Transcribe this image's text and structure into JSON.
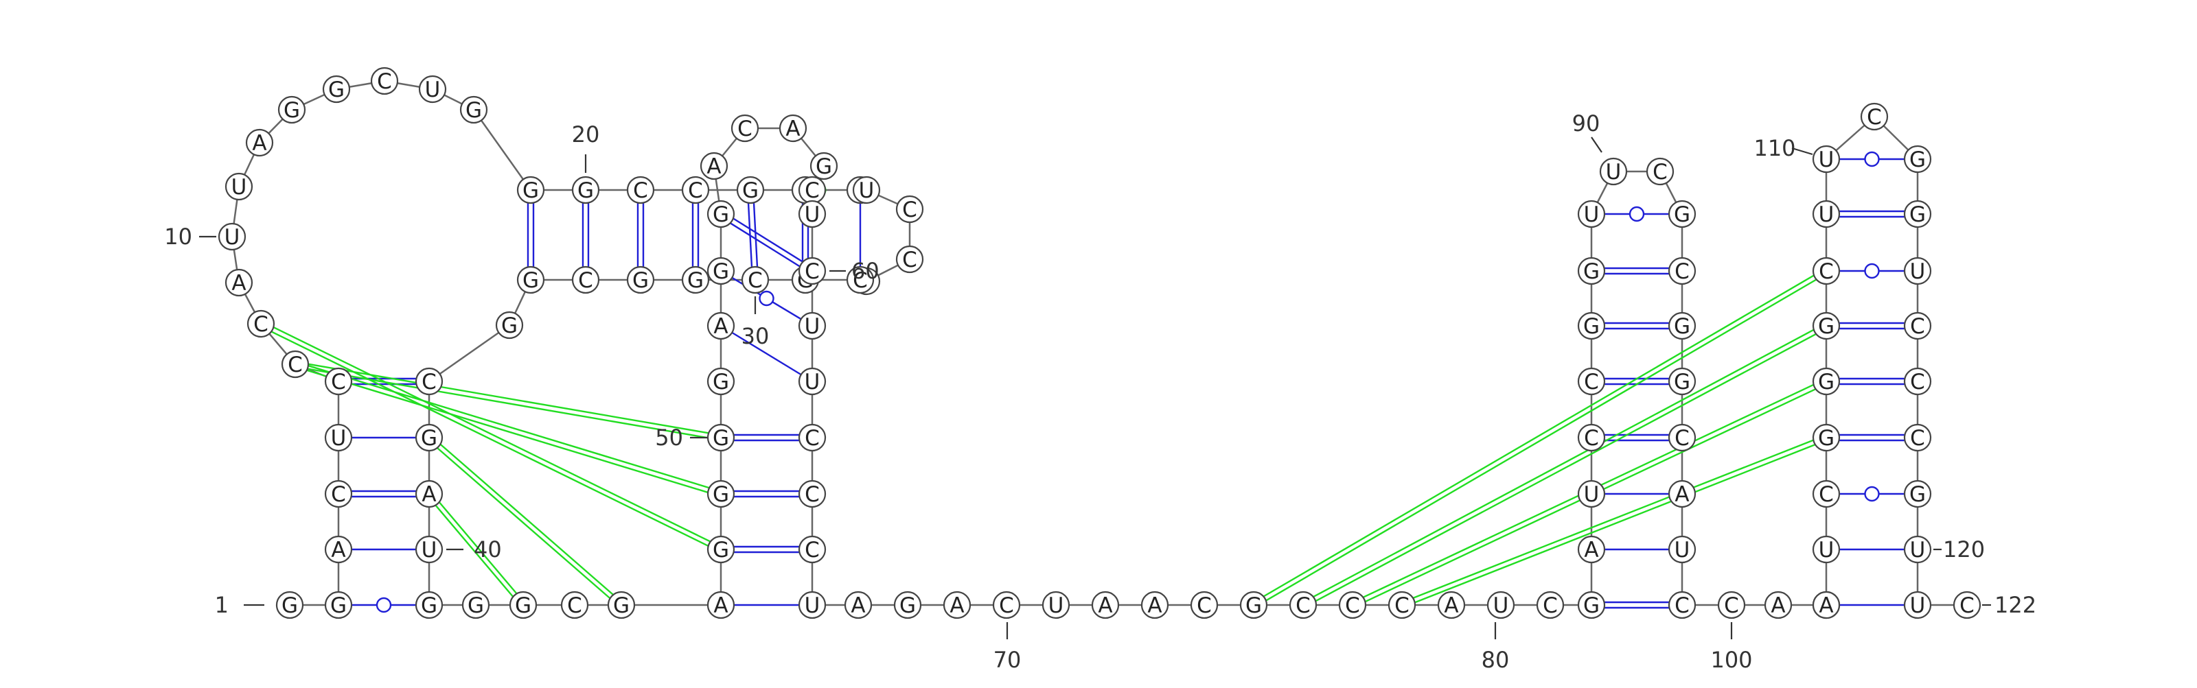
{
  "diagram": {
    "type": "rna-secondary-structure",
    "sequence_length": 122,
    "colors": {
      "canonical_pair": "#1f1fd6",
      "wobble_pair": "#1f1fd6",
      "pseudoknot": "#22dd22",
      "noncanonical": "#00dd00",
      "backbone": "#666666"
    },
    "nucleotides": [
      {
        "n": 1,
        "b": "G"
      },
      {
        "n": 2,
        "b": "G"
      },
      {
        "n": 3,
        "b": "A"
      },
      {
        "n": 4,
        "b": "C"
      },
      {
        "n": 5,
        "b": "U"
      },
      {
        "n": 6,
        "b": "C"
      },
      {
        "n": 7,
        "b": "C"
      },
      {
        "n": 8,
        "b": "C"
      },
      {
        "n": 9,
        "b": "A"
      },
      {
        "n": 10,
        "b": "U"
      },
      {
        "n": 11,
        "b": "U"
      },
      {
        "n": 12,
        "b": "A"
      },
      {
        "n": 13,
        "b": "G"
      },
      {
        "n": 14,
        "b": "G"
      },
      {
        "n": 15,
        "b": "C"
      },
      {
        "n": 16,
        "b": "U"
      },
      {
        "n": 17,
        "b": "G"
      },
      {
        "n": 18,
        "b": "G"
      },
      {
        "n": 19,
        "b": "G"
      },
      {
        "n": 20,
        "b": "C"
      },
      {
        "n": 21,
        "b": "C"
      },
      {
        "n": 22,
        "b": "G"
      },
      {
        "n": 23,
        "b": "C"
      },
      {
        "n": 24,
        "b": "C"
      },
      {
        "n": 25,
        "b": "U"
      },
      {
        "n": 26,
        "b": "C"
      },
      {
        "n": 27,
        "b": "C"
      },
      {
        "n": 28,
        "b": "U"
      },
      {
        "n": 29,
        "b": "C"
      },
      {
        "n": 30,
        "b": "G"
      },
      {
        "n": 31,
        "b": "C"
      },
      {
        "n": 32,
        "b": "G"
      },
      {
        "n": 33,
        "b": "G"
      },
      {
        "n": 34,
        "b": "C"
      },
      {
        "n": 35,
        "b": "G"
      },
      {
        "n": 36,
        "b": "G"
      },
      {
        "n": 37,
        "b": "C"
      },
      {
        "n": 38,
        "b": "G"
      },
      {
        "n": 39,
        "b": "A"
      },
      {
        "n": 40,
        "b": "U"
      },
      {
        "n": 41,
        "b": "G"
      },
      {
        "n": 42,
        "b": "G"
      },
      {
        "n": 43,
        "b": "G"
      },
      {
        "n": 44,
        "b": "C"
      },
      {
        "n": 45,
        "b": "G"
      },
      {
        "n": 46,
        "b": "A"
      },
      {
        "n": 47,
        "b": "G"
      },
      {
        "n": 48,
        "b": "G"
      },
      {
        "n": 49,
        "b": "G"
      },
      {
        "n": 50,
        "b": "G"
      },
      {
        "n": 51,
        "b": "A"
      },
      {
        "n": 52,
        "b": "G"
      },
      {
        "n": 53,
        "b": "G"
      },
      {
        "n": 54,
        "b": "A"
      },
      {
        "n": 55,
        "b": "C"
      },
      {
        "n": 56,
        "b": "A"
      },
      {
        "n": 57,
        "b": "G"
      },
      {
        "n": 58,
        "b": "C"
      },
      {
        "n": 59,
        "b": "U"
      },
      {
        "n": 60,
        "b": "C"
      },
      {
        "n": 61,
        "b": "U"
      },
      {
        "n": 62,
        "b": "U"
      },
      {
        "n": 63,
        "b": "C"
      },
      {
        "n": 64,
        "b": "C"
      },
      {
        "n": 65,
        "b": "C"
      },
      {
        "n": 66,
        "b": "U"
      },
      {
        "n": 67,
        "b": "A"
      },
      {
        "n": 68,
        "b": "G"
      },
      {
        "n": 69,
        "b": "A"
      },
      {
        "n": 70,
        "b": "C"
      },
      {
        "n": 71,
        "b": "U"
      },
      {
        "n": 72,
        "b": "A"
      },
      {
        "n": 73,
        "b": "A"
      },
      {
        "n": 74,
        "b": "C"
      },
      {
        "n": 75,
        "b": "G"
      },
      {
        "n": 76,
        "b": "C"
      },
      {
        "n": 77,
        "b": "C"
      },
      {
        "n": 78,
        "b": "C"
      },
      {
        "n": 79,
        "b": "A"
      },
      {
        "n": 80,
        "b": "U"
      },
      {
        "n": 81,
        "b": "C"
      },
      {
        "n": 82,
        "b": "G"
      },
      {
        "n": 83,
        "b": "A"
      },
      {
        "n": 84,
        "b": "U"
      },
      {
        "n": 85,
        "b": "C"
      },
      {
        "n": 86,
        "b": "C"
      },
      {
        "n": 87,
        "b": "G"
      },
      {
        "n": 88,
        "b": "G"
      },
      {
        "n": 89,
        "b": "U"
      },
      {
        "n": 90,
        "b": "U"
      },
      {
        "n": 91,
        "b": "C"
      },
      {
        "n": 92,
        "b": "G"
      },
      {
        "n": 93,
        "b": "C"
      },
      {
        "n": 94,
        "b": "G"
      },
      {
        "n": 95,
        "b": "G"
      },
      {
        "n": 96,
        "b": "C"
      },
      {
        "n": 97,
        "b": "A"
      },
      {
        "n": 98,
        "b": "U"
      },
      {
        "n": 99,
        "b": "C"
      },
      {
        "n": 100,
        "b": "C"
      },
      {
        "n": 101,
        "b": "A"
      },
      {
        "n": 102,
        "b": "A"
      },
      {
        "n": 103,
        "b": "A"
      },
      {
        "n": 104,
        "b": "U"
      },
      {
        "n": 105,
        "b": "C"
      },
      {
        "n": 106,
        "b": "G"
      },
      {
        "n": 107,
        "b": "G"
      },
      {
        "n": 108,
        "b": "G"
      },
      {
        "n": 109,
        "b": "C"
      },
      {
        "n": 110,
        "b": "U"
      },
      {
        "n": 111,
        "b": "U"
      },
      {
        "n": 112,
        "b": "C"
      },
      {
        "n": 113,
        "b": "G"
      },
      {
        "n": 114,
        "b": "G"
      },
      {
        "n": 115,
        "b": "U"
      },
      {
        "n": 116,
        "b": "C"
      },
      {
        "n": 117,
        "b": "C"
      },
      {
        "n": 118,
        "b": "C"
      },
      {
        "n": 119,
        "b": "G"
      },
      {
        "n": 120,
        "b": "U"
      },
      {
        "n": 121,
        "b": "U"
      },
      {
        "n": 122,
        "b": "C"
      }
    ],
    "pairs": [
      {
        "i": 2,
        "j": 41,
        "kind": "wobble"
      },
      {
        "i": 3,
        "j": 40,
        "kind": "single"
      },
      {
        "i": 4,
        "j": 39,
        "kind": "double"
      },
      {
        "i": 5,
        "j": 38,
        "kind": "single"
      },
      {
        "i": 6,
        "j": 37,
        "kind": "double"
      },
      {
        "i": 18,
        "j": 35,
        "kind": "double"
      },
      {
        "i": 19,
        "j": 34,
        "kind": "double"
      },
      {
        "i": 20,
        "j": 33,
        "kind": "double"
      },
      {
        "i": 21,
        "j": 32,
        "kind": "double"
      },
      {
        "i": 22,
        "j": 31,
        "kind": "double"
      },
      {
        "i": 23,
        "j": 30,
        "kind": "double"
      },
      {
        "i": 24,
        "j": 29,
        "kind": "single"
      },
      {
        "i": 46,
        "j": 66,
        "kind": "single"
      },
      {
        "i": 47,
        "j": 65,
        "kind": "double"
      },
      {
        "i": 48,
        "j": 64,
        "kind": "double"
      },
      {
        "i": 49,
        "j": 63,
        "kind": "double"
      },
      {
        "i": 51,
        "j": 62,
        "kind": "single"
      },
      {
        "i": 52,
        "j": 61,
        "kind": "wobble"
      },
      {
        "i": 53,
        "j": 60,
        "kind": "double"
      },
      {
        "i": 57,
        "j": 59,
        "kind": "green"
      },
      {
        "i": 82,
        "j": 99,
        "kind": "double"
      },
      {
        "i": 83,
        "j": 98,
        "kind": "single"
      },
      {
        "i": 84,
        "j": 97,
        "kind": "single"
      },
      {
        "i": 85,
        "j": 96,
        "kind": "double"
      },
      {
        "i": 86,
        "j": 95,
        "kind": "double"
      },
      {
        "i": 87,
        "j": 94,
        "kind": "double"
      },
      {
        "i": 88,
        "j": 93,
        "kind": "double"
      },
      {
        "i": 89,
        "j": 92,
        "kind": "wobble"
      },
      {
        "i": 103,
        "j": 121,
        "kind": "single"
      },
      {
        "i": 104,
        "j": 120,
        "kind": "single"
      },
      {
        "i": 105,
        "j": 119,
        "kind": "wobble"
      },
      {
        "i": 106,
        "j": 118,
        "kind": "double"
      },
      {
        "i": 107,
        "j": 117,
        "kind": "double"
      },
      {
        "i": 108,
        "j": 116,
        "kind": "double"
      },
      {
        "i": 109,
        "j": 115,
        "kind": "wobble"
      },
      {
        "i": 110,
        "j": 114,
        "kind": "double"
      },
      {
        "i": 111,
        "j": 113,
        "kind": "wobble"
      }
    ],
    "pseudoknots": [
      {
        "i": 7,
        "j": 49
      },
      {
        "i": 7,
        "j": 48
      },
      {
        "i": 8,
        "j": 47
      },
      {
        "i": 38,
        "j": 45
      },
      {
        "i": 39,
        "j": 43
      },
      {
        "i": 75,
        "j": 109
      },
      {
        "i": 76,
        "j": 108
      },
      {
        "i": 77,
        "j": 107
      },
      {
        "i": 78,
        "j": 106
      }
    ],
    "index_labels": [
      {
        "n": 1,
        "text": "1"
      },
      {
        "n": 10,
        "text": "10"
      },
      {
        "n": 20,
        "text": "20"
      },
      {
        "n": 30,
        "text": "30"
      },
      {
        "n": 40,
        "text": "40"
      },
      {
        "n": 50,
        "text": "50"
      },
      {
        "n": 60,
        "text": "60"
      },
      {
        "n": 70,
        "text": "70"
      },
      {
        "n": 80,
        "text": "80"
      },
      {
        "n": 90,
        "text": "90"
      },
      {
        "n": 100,
        "text": "100"
      },
      {
        "n": 110,
        "text": "110"
      },
      {
        "n": 120,
        "text": "120"
      },
      {
        "n": 122,
        "text": "122"
      }
    ]
  }
}
